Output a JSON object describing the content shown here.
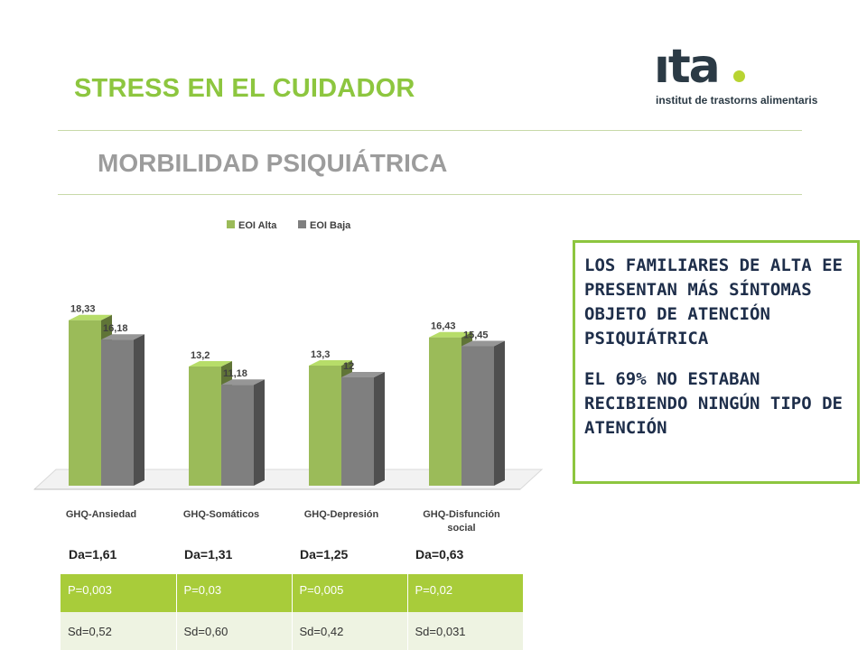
{
  "header": {
    "title": "STRESS EN EL CUIDADOR",
    "subtitle": "MORBILIDAD PSIQUIÁTRICA"
  },
  "logo": {
    "word": "ıta",
    "tagline": "institut de trastorns alimentaris",
    "dot_color": "#b8d432",
    "text_color": "#2b3a45"
  },
  "chart_data": {
    "type": "bar",
    "categories": [
      "GHQ-Ansiedad",
      "GHQ-Somáticos",
      "GHQ-Depresión",
      "GHQ-Disfunción social"
    ],
    "category_lines": [
      [
        "GHQ-Ansiedad"
      ],
      [
        "GHQ-Somáticos"
      ],
      [
        "GHQ-Depresión"
      ],
      [
        "GHQ-Disfunción",
        "social"
      ]
    ],
    "series": [
      {
        "name": "EOI Alta",
        "values": [
          18.33,
          13.2,
          13.3,
          16.43
        ],
        "labels": [
          "18,33",
          "13,2",
          "13,3",
          "16,43"
        ],
        "color": "#9bbb59"
      },
      {
        "name": "EOI Baja",
        "values": [
          16.18,
          11.18,
          12,
          15.45
        ],
        "labels": [
          "16,18",
          "11,18",
          "12",
          "15,45"
        ],
        "color": "#7f7f7f"
      }
    ],
    "ylim": [
      0,
      20
    ],
    "grid": false,
    "legend": "top-center",
    "style": "3d"
  },
  "callout": {
    "paragraph1": "LOS FAMILIARES DE ALTA EE PRESENTAN MÁS SÍNTOMAS OBJETO DE ATENCIÓN PSIQUIÁTRICA",
    "paragraph2": "EL 69% NO ESTABAN RECIBIENDO NINGÚN TIPO DE ATENCIÓN",
    "border_color": "#8dc63f"
  },
  "stats": {
    "da": [
      "Da=1,61",
      "Da=1,31",
      "Da=1,25",
      "Da=0,63"
    ],
    "p": [
      "P=0,003",
      "P=0,03",
      "P=0,005",
      "P=0,02"
    ],
    "sd": [
      "Sd=0,52",
      "Sd=0,60",
      "Sd=0,42",
      "Sd=0,031"
    ]
  }
}
